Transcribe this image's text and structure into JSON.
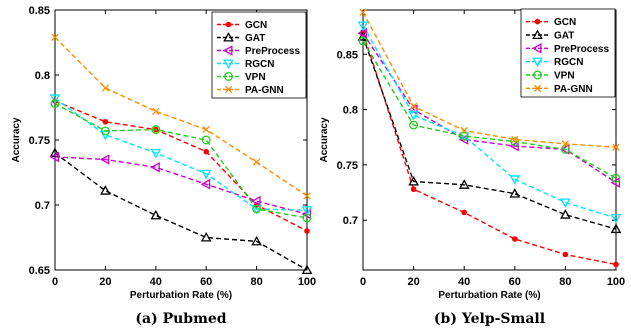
{
  "chart_data": [
    {
      "type": "line",
      "caption": "(a) Pubmed",
      "xlabel": "Perturbation Rate (%)",
      "ylabel": "Accuracy",
      "x": [
        0,
        20,
        40,
        60,
        80,
        100
      ],
      "xlim": [
        0,
        100
      ],
      "ylim": [
        0.65,
        0.85
      ],
      "xticks": [
        "0",
        "20",
        "40",
        "60",
        "80",
        "100"
      ],
      "yticks": [
        "0.65",
        "0.7",
        "0.75",
        "0.8",
        "0.85"
      ],
      "ytick_values": [
        0.65,
        0.7,
        0.75,
        0.8,
        0.85
      ],
      "legend_position": "top-right",
      "series": [
        {
          "name": "GCN",
          "color": "#ff0000",
          "marker": "dot",
          "values": [
            0.78,
            0.764,
            0.758,
            0.741,
            0.7,
            0.68
          ]
        },
        {
          "name": "GAT",
          "color": "#000000",
          "marker": "triangle-up",
          "values": [
            0.74,
            0.711,
            0.692,
            0.675,
            0.672,
            0.65
          ]
        },
        {
          "name": "PreProcess",
          "color": "#cc00cc",
          "marker": "triangle-left",
          "values": [
            0.737,
            0.735,
            0.729,
            0.716,
            0.703,
            0.693
          ]
        },
        {
          "name": "RGCN",
          "color": "#00e5ff",
          "marker": "triangle-down",
          "values": [
            0.782,
            0.754,
            0.74,
            0.724,
            0.697,
            0.696
          ]
        },
        {
          "name": "VPN",
          "color": "#22cc22",
          "marker": "circle",
          "values": [
            0.778,
            0.757,
            0.758,
            0.75,
            0.697,
            0.69
          ]
        },
        {
          "name": "PA-GNN",
          "color": "#ff8c00",
          "marker": "x",
          "values": [
            0.829,
            0.79,
            0.772,
            0.758,
            0.733,
            0.707
          ]
        }
      ]
    },
    {
      "type": "line",
      "caption": "(b) Yelp-Small",
      "xlabel": "Perturbation Rate (%)",
      "ylabel": "Accuracy",
      "x": [
        0,
        20,
        40,
        60,
        80,
        100
      ],
      "xlim": [
        0,
        100
      ],
      "ylim": [
        0.655,
        0.89
      ],
      "xticks": [
        "0",
        "20",
        "40",
        "60",
        "80",
        "100"
      ],
      "yticks": [
        "0.7",
        "0.75",
        "0.8",
        "0.85"
      ],
      "ytick_values": [
        0.7,
        0.75,
        0.8,
        0.85
      ],
      "legend_position": "top-right",
      "series": [
        {
          "name": "GCN",
          "color": "#ff0000",
          "marker": "dot",
          "values": [
            0.87,
            0.728,
            0.707,
            0.683,
            0.669,
            0.66
          ]
        },
        {
          "name": "GAT",
          "color": "#000000",
          "marker": "triangle-up",
          "values": [
            0.866,
            0.735,
            0.732,
            0.724,
            0.705,
            0.692
          ]
        },
        {
          "name": "PreProcess",
          "color": "#cc00cc",
          "marker": "triangle-left",
          "values": [
            0.869,
            0.8,
            0.773,
            0.767,
            0.764,
            0.734
          ]
        },
        {
          "name": "RGCN",
          "color": "#00e5ff",
          "marker": "triangle-down",
          "values": [
            0.876,
            0.795,
            0.776,
            0.737,
            0.716,
            0.702
          ]
        },
        {
          "name": "VPN",
          "color": "#22cc22",
          "marker": "circle",
          "values": [
            0.862,
            0.786,
            0.776,
            0.771,
            0.764,
            0.738
          ]
        },
        {
          "name": "PA-GNN",
          "color": "#ff8c00",
          "marker": "x",
          "values": [
            0.888,
            0.803,
            0.781,
            0.773,
            0.769,
            0.766
          ]
        }
      ]
    }
  ]
}
